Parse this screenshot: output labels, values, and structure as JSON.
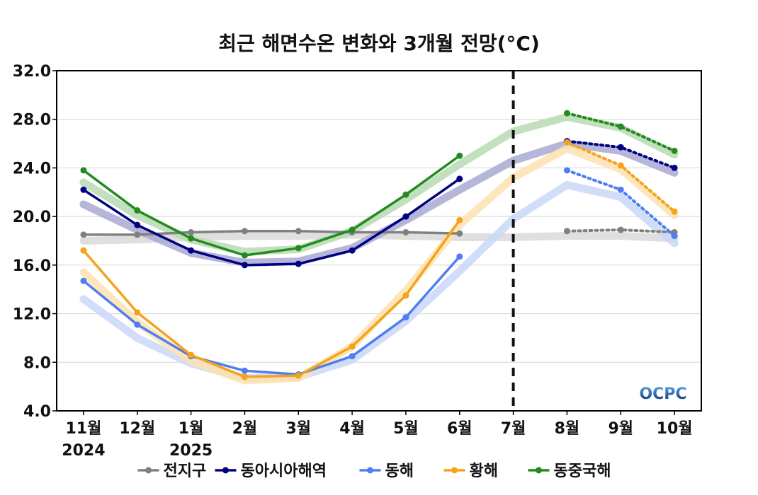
{
  "chart_data": {
    "type": "line",
    "title": "최근 해면수온 변화와 3개월 전망(°C)",
    "ylim": [
      4.0,
      32.0
    ],
    "yticks": [
      "32.0",
      "28.0",
      "24.0",
      "20.0",
      "16.0",
      "12.0",
      "8.0",
      "4.0"
    ],
    "categories": [
      "11월",
      "12월",
      "1월",
      "2월",
      "3월",
      "4월",
      "5월",
      "6월",
      "7월",
      "8월",
      "9월",
      "10월"
    ],
    "year_labels": [
      {
        "category": "11월",
        "label": "2024"
      },
      {
        "category": "1월",
        "label": "2025"
      }
    ],
    "forecast_divider_category": "7월",
    "grid": true,
    "legend_position": "bottom",
    "logo_text": "OCPC",
    "series": [
      {
        "name": "전지구",
        "color": "#808080",
        "band_color": "#d9d9d9",
        "observed": [
          18.5,
          18.5,
          18.7,
          18.8,
          18.8,
          18.7,
          18.7,
          18.6,
          null,
          null,
          null,
          null
        ],
        "forecast": [
          null,
          null,
          null,
          null,
          null,
          null,
          null,
          null,
          null,
          18.8,
          18.9,
          18.7
        ],
        "climatology": [
          18.0,
          18.1,
          18.3,
          18.4,
          18.4,
          18.5,
          18.4,
          18.3,
          18.3,
          18.4,
          18.4,
          18.2
        ]
      },
      {
        "name": "동아시아해역",
        "color": "#000080",
        "band_color": "#a9a9d4",
        "observed": [
          22.2,
          19.3,
          17.2,
          16.0,
          16.1,
          17.2,
          20.0,
          23.1,
          null,
          null,
          null,
          null
        ],
        "forecast": [
          null,
          null,
          null,
          null,
          null,
          null,
          null,
          null,
          null,
          26.2,
          25.7,
          24.0
        ],
        "climatology": [
          21.0,
          18.9,
          17.0,
          16.2,
          16.3,
          17.4,
          19.7,
          22.2,
          24.6,
          26.0,
          25.4,
          23.6
        ]
      },
      {
        "name": "동해",
        "color": "#4f7ef0",
        "band_color": "#c9d7f8",
        "observed": [
          14.7,
          11.1,
          8.5,
          7.3,
          7.0,
          8.5,
          11.7,
          16.7,
          null,
          null,
          null,
          null
        ],
        "forecast": [
          null,
          null,
          null,
          null,
          null,
          null,
          null,
          null,
          null,
          23.8,
          22.2,
          18.4
        ],
        "climatology": [
          13.2,
          10.0,
          7.9,
          6.7,
          6.8,
          8.2,
          11.4,
          15.5,
          19.8,
          22.6,
          21.6,
          17.8
        ]
      },
      {
        "name": "황해",
        "color": "#f5a31a",
        "band_color": "#fde2b0",
        "observed": [
          17.2,
          12.1,
          8.6,
          6.8,
          6.9,
          9.3,
          13.5,
          19.7,
          null,
          null,
          null,
          null
        ],
        "forecast": [
          null,
          null,
          null,
          null,
          null,
          null,
          null,
          null,
          null,
          26.1,
          24.2,
          20.4
        ],
        "climatology": [
          15.4,
          11.3,
          8.1,
          6.5,
          6.7,
          9.3,
          13.9,
          19.3,
          23.2,
          25.6,
          23.9,
          20.1
        ]
      },
      {
        "name": "동중국해",
        "color": "#228b22",
        "band_color": "#b8dbb3",
        "observed": [
          23.8,
          20.5,
          18.2,
          16.8,
          17.4,
          18.9,
          21.8,
          25.0,
          null,
          null,
          null,
          null
        ],
        "forecast": [
          null,
          null,
          null,
          null,
          null,
          null,
          null,
          null,
          null,
          28.5,
          27.4,
          25.4
        ],
        "climatology": [
          22.8,
          20.1,
          18.1,
          17.1,
          17.3,
          18.8,
          21.4,
          24.3,
          27.0,
          28.2,
          27.3,
          25.1
        ]
      }
    ]
  }
}
